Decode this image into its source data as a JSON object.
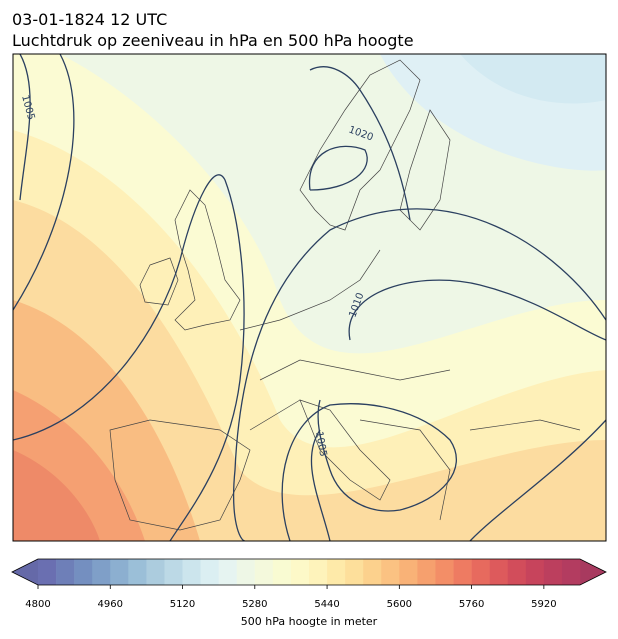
{
  "title": "03-01-1824 12 UTC",
  "subtitle": "Luchtdruk op zeeniveau in hPa en 500 hPa hoogte",
  "contour_labels": [
    1005,
    1020,
    1010,
    1005
  ],
  "colorbar": {
    "label": "500 hPa hoogte in meter",
    "range": [
      4800,
      6000
    ],
    "ticks": [
      4800,
      4960,
      5120,
      5280,
      5440,
      5600,
      5760,
      5920
    ],
    "under_color": "#6569a8",
    "over_color": "#a83a5f",
    "colors": [
      "#6a6fb1",
      "#6e7fb8",
      "#748fc0",
      "#7f9fc8",
      "#8cafd0",
      "#9bbfd8",
      "#acccde",
      "#bcd9e6",
      "#cce5ed",
      "#dbeff2",
      "#e6f4f1",
      "#eef7e6",
      "#f4f9dc",
      "#f9fbd2",
      "#fdf9c8",
      "#fef3bb",
      "#feeaa9",
      "#fddf9b",
      "#fcd18d",
      "#fbc282",
      "#f9b277",
      "#f6a06e",
      "#f38e67",
      "#ee7b62",
      "#e76a5e",
      "#dd5a5c",
      "#d24d5b",
      "#c7445c",
      "#bc3f5e",
      "#b33c60"
    ]
  }
}
